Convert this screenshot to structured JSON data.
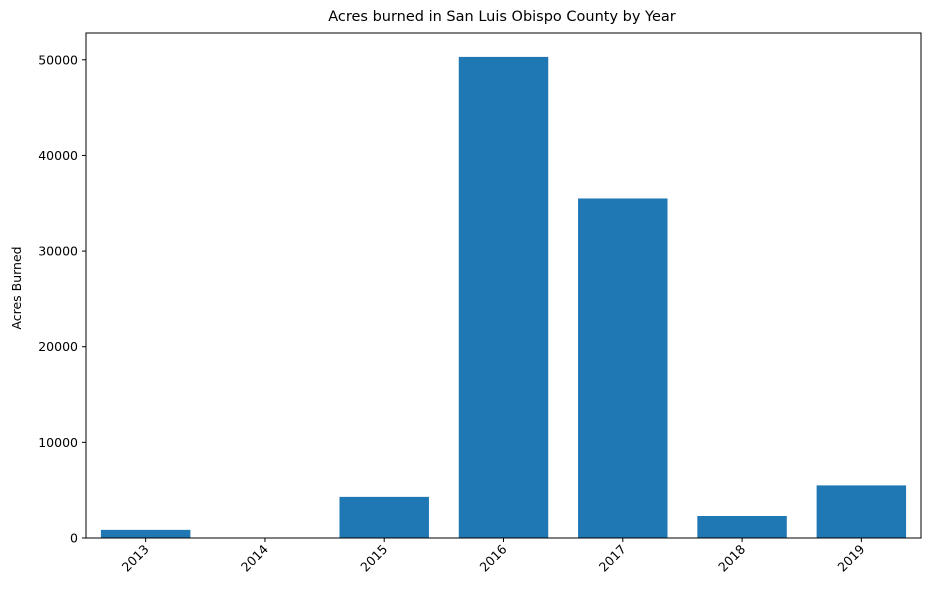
{
  "chart_data": {
    "type": "bar",
    "title": "Acres burned in San Luis Obispo County by Year",
    "xlabel": "",
    "ylabel": "Acres Burned",
    "categories": [
      "2013",
      "2014",
      "2015",
      "2016",
      "2017",
      "2018",
      "2019"
    ],
    "values": [
      850,
      0,
      4300,
      50300,
      35500,
      2300,
      5500
    ],
    "ylim": [
      0,
      52800
    ],
    "yticks": [
      0,
      10000,
      20000,
      30000,
      40000,
      50000
    ],
    "grid": false,
    "bar_color": "#1f77b4",
    "xtick_rotation": -45
  }
}
